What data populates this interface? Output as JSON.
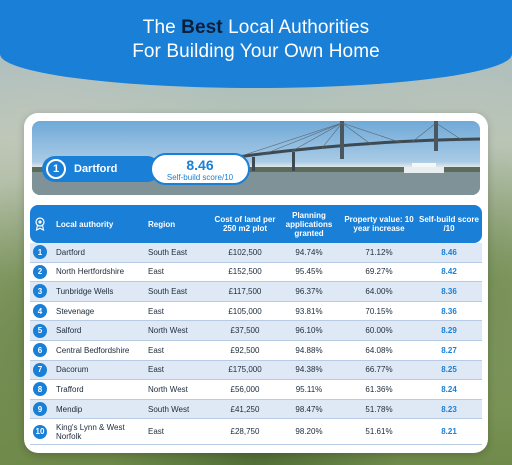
{
  "header": {
    "title_line1_prefix": "The ",
    "title_line1_bold": "Best",
    "title_line1_suffix": " Local Authorities",
    "title_line2": "For Building Your Own Home"
  },
  "winner": {
    "rank": "1",
    "name": "Dartford",
    "score": "8.46",
    "score_label": "Self-build score/10"
  },
  "table": {
    "icons": {
      "header": "award-ribbon-icon"
    },
    "columns": {
      "authority": "Local authority",
      "region": "Region",
      "cost": "Cost of land per 250 m2 plot",
      "planning": "Planning applications granted",
      "property": "Property value: 10 year increase",
      "score": "Self-build score /10"
    },
    "rows": [
      {
        "rank": "1",
        "authority": "Dartford",
        "region": "South East",
        "cost": "£102,500",
        "planning": "94.74%",
        "property": "71.12%",
        "score": "8.46"
      },
      {
        "rank": "2",
        "authority": "North Hertfordshire",
        "region": "East",
        "cost": "£152,500",
        "planning": "95.45%",
        "property": "69.27%",
        "score": "8.42"
      },
      {
        "rank": "3",
        "authority": "Tunbridge Wells",
        "region": "South East",
        "cost": "£117,500",
        "planning": "96.37%",
        "property": "64.00%",
        "score": "8.36"
      },
      {
        "rank": "4",
        "authority": "Stevenage",
        "region": "East",
        "cost": "£105,000",
        "planning": "93.81%",
        "property": "70.15%",
        "score": "8.36"
      },
      {
        "rank": "5",
        "authority": "Salford",
        "region": "North West",
        "cost": "£37,500",
        "planning": "96.10%",
        "property": "60.00%",
        "score": "8.29"
      },
      {
        "rank": "6",
        "authority": "Central Bedfordshire",
        "region": "East",
        "cost": "£92,500",
        "planning": "94.88%",
        "property": "64.08%",
        "score": "8.27"
      },
      {
        "rank": "7",
        "authority": "Dacorum",
        "region": "East",
        "cost": "£175,000",
        "planning": "94.38%",
        "property": "66.77%",
        "score": "8.25"
      },
      {
        "rank": "8",
        "authority": "Trafford",
        "region": "North West",
        "cost": "£56,000",
        "planning": "95.11%",
        "property": "61.36%",
        "score": "8.24"
      },
      {
        "rank": "9",
        "authority": "Mendip",
        "region": "South West",
        "cost": "£41,250",
        "planning": "98.47%",
        "property": "51.78%",
        "score": "8.23"
      },
      {
        "rank": "10",
        "authority": "King's Lynn & West Norfolk",
        "region": "East",
        "cost": "£28,750",
        "planning": "98.20%",
        "property": "51.61%",
        "score": "8.21"
      }
    ]
  },
  "colors": {
    "accent": "#1a7fd6",
    "title_bold": "#0b1f3a",
    "row_alt": "#dfe9f6"
  }
}
